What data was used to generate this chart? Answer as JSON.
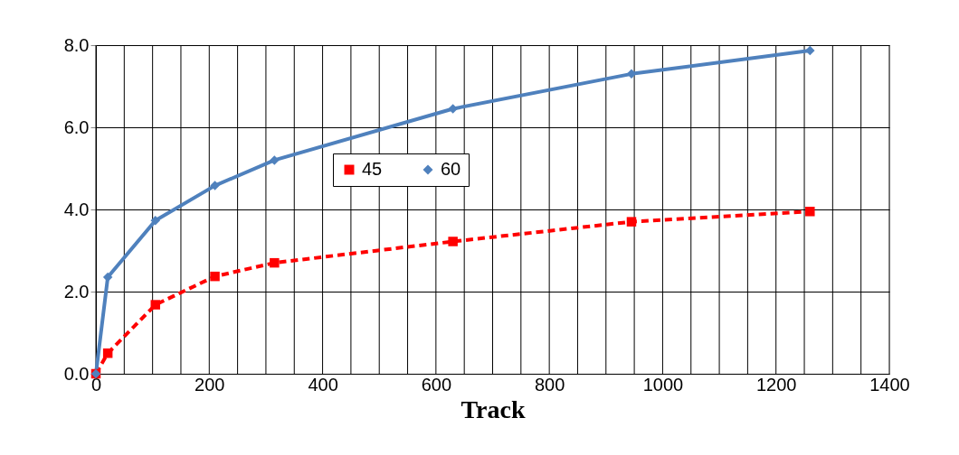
{
  "chart_data": {
    "type": "line",
    "xlabel": "Track",
    "x": [
      0,
      21,
      105,
      210,
      315,
      630,
      945,
      1260
    ],
    "series": [
      {
        "name": "45",
        "color": "#ff0000",
        "line_style": "dashed",
        "marker": "square",
        "values": [
          0,
          0.5,
          1.68,
          2.37,
          2.7,
          3.22,
          3.7,
          3.95
        ]
      },
      {
        "name": "60",
        "color": "#4f81bd",
        "line_style": "solid",
        "marker": "diamond",
        "values": [
          0,
          2.35,
          3.73,
          4.58,
          5.2,
          6.45,
          7.3,
          7.87
        ]
      }
    ],
    "xlim": [
      0,
      1400
    ],
    "xticks": [
      0,
      {
        "value": 50,
        "label": null
      },
      {
        "value": 100,
        "label": null
      },
      {
        "value": 150,
        "label": null
      },
      200,
      {
        "value": 250,
        "label": null
      },
      {
        "value": 300,
        "label": null
      },
      {
        "value": 350,
        "label": null
      },
      400,
      {
        "value": 450,
        "label": null
      },
      {
        "value": 500,
        "label": null
      },
      {
        "value": 550,
        "label": null
      },
      600,
      {
        "value": 650,
        "label": null
      },
      {
        "value": 700,
        "label": null
      },
      {
        "value": 750,
        "label": null
      },
      800,
      {
        "value": 850,
        "label": null
      },
      {
        "value": 900,
        "label": null
      },
      {
        "value": 950,
        "label": null
      },
      1000,
      {
        "value": 1050,
        "label": null
      },
      {
        "value": 1100,
        "label": null
      },
      {
        "value": 1150,
        "label": null
      },
      1200,
      {
        "value": 1250,
        "label": null
      },
      {
        "value": 1300,
        "label": null
      },
      {
        "value": 1350,
        "label": null
      },
      1400
    ],
    "ylim": [
      0,
      8
    ],
    "yticks": [
      {
        "value": 0,
        "label": "0.0"
      },
      {
        "value": 2,
        "label": "2.0"
      },
      {
        "value": 4,
        "label": "4.0"
      },
      {
        "value": 6,
        "label": "6.0"
      },
      {
        "value": 8,
        "label": "8.0"
      }
    ],
    "grid": true,
    "legend": "top"
  }
}
